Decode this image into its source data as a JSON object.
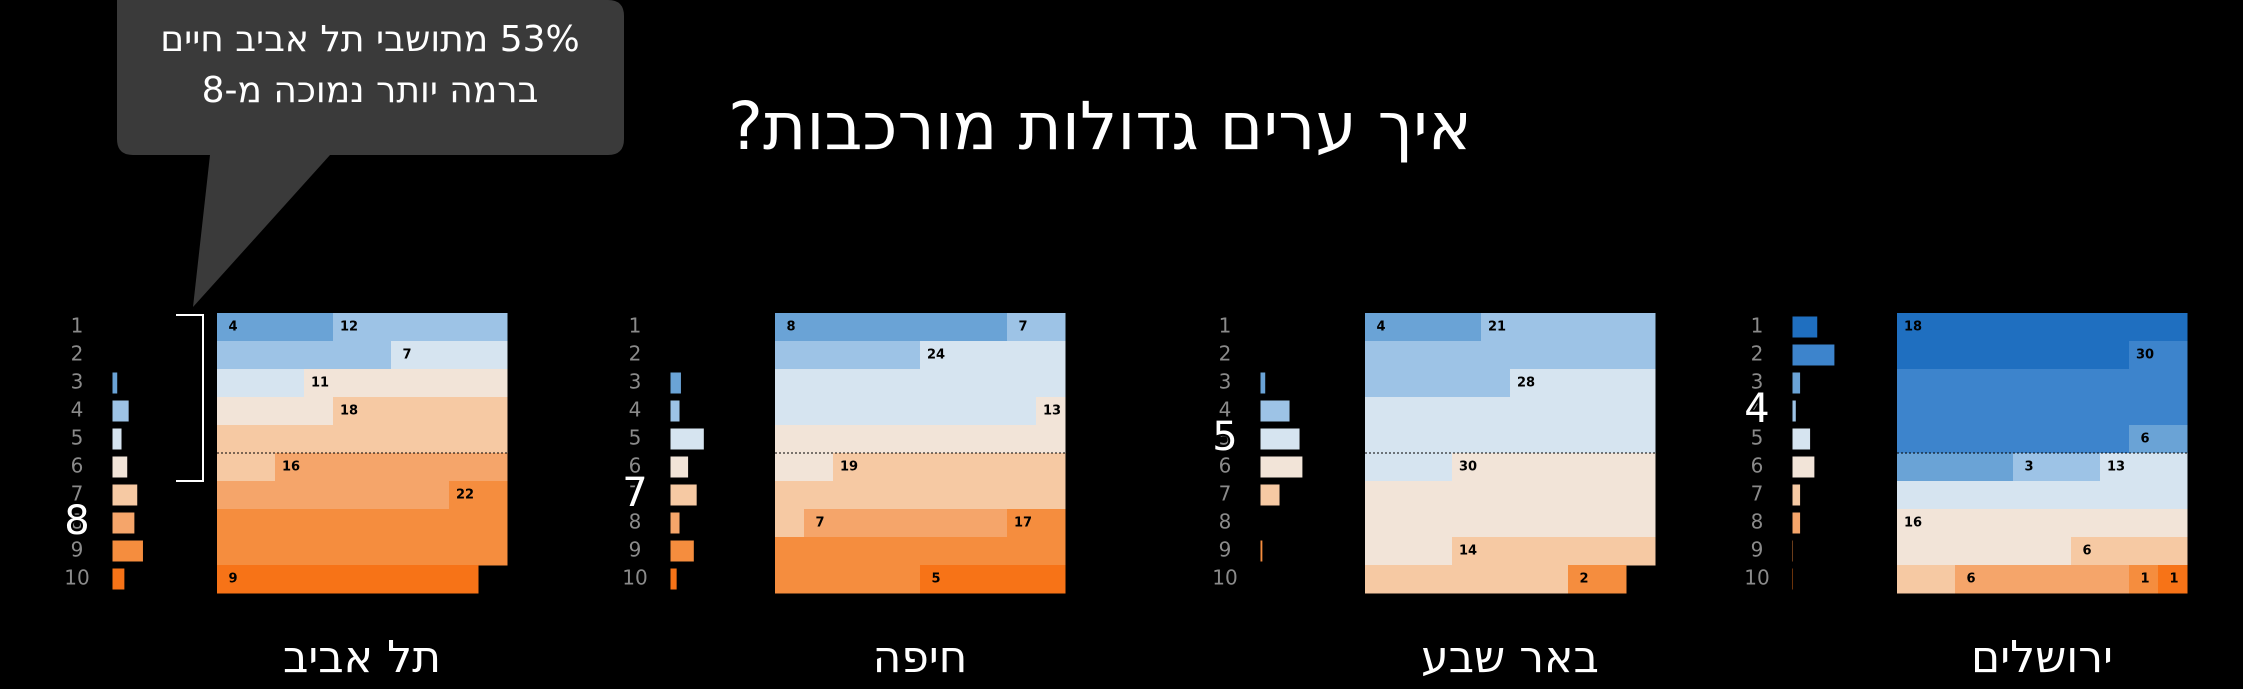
{
  "title": "איך ערים גדולות מורכבות?",
  "callout": [
    "53% מתושבי תל אביב חיים",
    "ברמה יותר נמוכה מ-8"
  ],
  "chart_data": [
    {
      "type": "waffle",
      "name": "תל אביב",
      "highlight": 8,
      "categories": [
        1,
        2,
        3,
        4,
        5,
        6,
        7,
        8,
        9,
        10
      ],
      "values": [
        null,
        null,
        4,
        12,
        7,
        11,
        18,
        16,
        22,
        9
      ],
      "colors": [
        "#1f6fc0",
        "#3d84cc",
        "#6aa3d6",
        "#9dc3e6",
        "#d6e4f0",
        "#f2e4d8",
        "#f6c9a3",
        "#f5a56a",
        "#f58d3e",
        "#f77317"
      ]
    },
    {
      "type": "waffle",
      "name": "חיפה",
      "highlight": 7,
      "categories": [
        1,
        2,
        3,
        4,
        5,
        6,
        7,
        8,
        9,
        10
      ],
      "values": [
        null,
        null,
        8,
        7,
        24,
        13,
        19,
        7,
        17,
        5
      ],
      "colors": [
        "#1f6fc0",
        "#3d84cc",
        "#6aa3d6",
        "#9dc3e6",
        "#d6e4f0",
        "#f2e4d8",
        "#f6c9a3",
        "#f5a56a",
        "#f58d3e",
        "#f77317"
      ]
    },
    {
      "type": "waffle",
      "name": "באר שבע",
      "highlight": 5,
      "categories": [
        1,
        2,
        3,
        4,
        5,
        6,
        7,
        8,
        9,
        10
      ],
      "values": [
        null,
        null,
        4,
        21,
        28,
        30,
        14,
        null,
        2,
        null
      ],
      "colors": [
        "#1f6fc0",
        "#3d84cc",
        "#6aa3d6",
        "#9dc3e6",
        "#d6e4f0",
        "#f2e4d8",
        "#f6c9a3",
        "#f5a56a",
        "#f58d3e",
        "#f77317"
      ]
    },
    {
      "type": "waffle",
      "name": "ירושלים",
      "highlight": 4,
      "categories": [
        1,
        2,
        3,
        4,
        5,
        6,
        7,
        8,
        9,
        10
      ],
      "values": [
        18,
        30,
        6,
        3,
        13,
        16,
        6,
        6,
        1,
        1
      ],
      "colors": [
        "#1f6fc0",
        "#3d84cc",
        "#6aa3d6",
        "#9dc3e6",
        "#d6e4f0",
        "#f2e4d8",
        "#f6c9a3",
        "#f5a56a",
        "#f58d3e",
        "#f77317"
      ]
    }
  ]
}
